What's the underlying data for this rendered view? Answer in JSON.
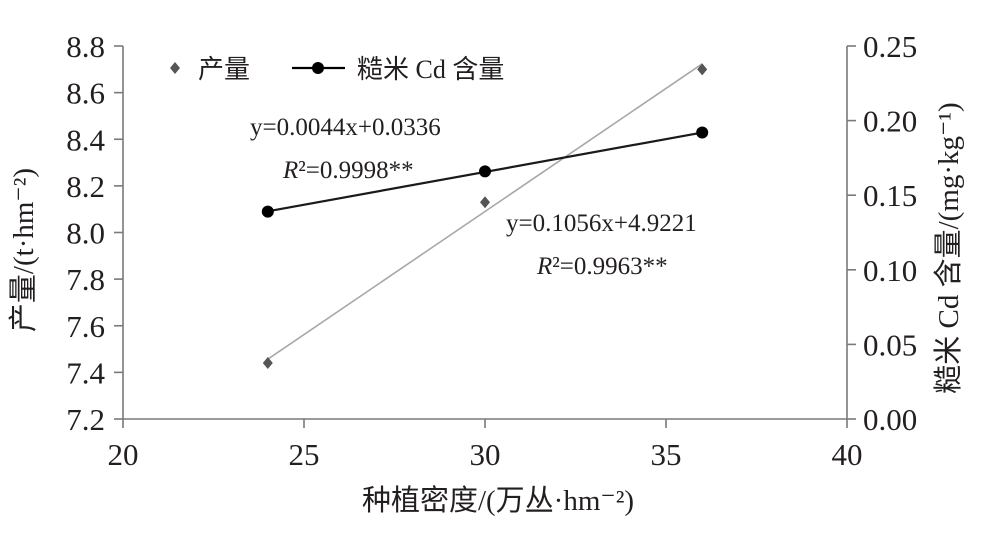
{
  "chart_data": {
    "type": "scatter",
    "x": [
      24,
      30,
      36
    ],
    "xlabel": "种植密度/(万丛·hm⁻²)",
    "xlim": [
      20,
      40
    ],
    "xticks": [
      "20",
      "25",
      "30",
      "35",
      "40"
    ],
    "ylabel": "产量/(t·hm⁻²)",
    "ylim": [
      7.2,
      8.8
    ],
    "yticks": [
      "7.2",
      "7.4",
      "7.6",
      "7.8",
      "8.0",
      "8.2",
      "8.4",
      "8.6",
      "8.8"
    ],
    "y2label": "糙米 Cd 含量/(mg·kg⁻¹)",
    "y2lim": [
      0,
      0.25
    ],
    "y2ticks": [
      "0.00",
      "0.05",
      "0.10",
      "0.15",
      "0.20",
      "0.25"
    ],
    "grid": false,
    "legend_position": "top-left",
    "series": [
      {
        "name": "产量",
        "axis": "left",
        "values": [
          7.44,
          8.13,
          8.7
        ],
        "marker": "diamond",
        "color": "#555555",
        "trendline": {
          "equation": "y=0.1056x+4.9221",
          "r_squared": "R²=0.9963**",
          "color": "#a8a8a8"
        }
      },
      {
        "name": "糙米 Cd 含量",
        "axis": "right",
        "values": [
          0.139,
          0.166,
          0.192
        ],
        "marker": "circle",
        "color": "#000000",
        "trendline": {
          "equation": "y=0.0044x+0.0336",
          "r_squared": "R²=0.9998**",
          "color": "#1a1a1a"
        }
      }
    ]
  }
}
